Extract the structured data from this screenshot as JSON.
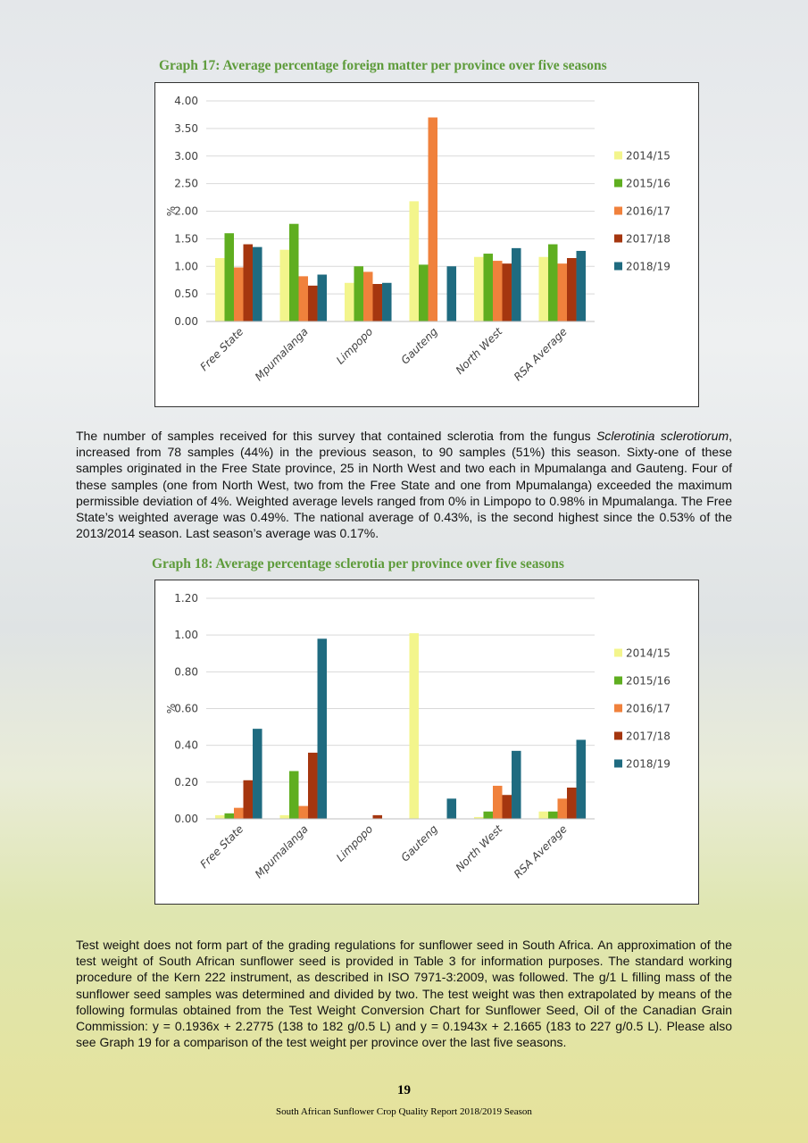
{
  "chart_data": [
    {
      "type": "bar",
      "title": "Graph 17: Average percentage foreign matter per province over five seasons",
      "y_label": "%",
      "categories": [
        "Free State",
        "Mpumalanga",
        "Limpopo",
        "Gauteng",
        "North West",
        "RSA Average"
      ],
      "series": [
        {
          "name": "2014/15",
          "color": "#f3f58c",
          "values": [
            1.15,
            1.3,
            0.7,
            2.18,
            1.17,
            1.17
          ]
        },
        {
          "name": "2015/16",
          "color": "#5fae20",
          "values": [
            1.6,
            1.77,
            1.0,
            1.03,
            1.23,
            1.4
          ]
        },
        {
          "name": "2016/17",
          "color": "#f0813c",
          "values": [
            0.98,
            0.82,
            0.9,
            3.7,
            1.1,
            1.05
          ]
        },
        {
          "name": "2017/18",
          "color": "#a5360f",
          "values": [
            1.4,
            0.65,
            0.68,
            null,
            1.05,
            1.15
          ]
        },
        {
          "name": "2018/19",
          "color": "#1f6b80",
          "values": [
            1.35,
            0.85,
            0.7,
            1.0,
            1.33,
            1.28
          ]
        }
      ],
      "ylim": [
        0,
        4
      ],
      "yticks": [
        {
          "value": 0,
          "label": "0.00"
        },
        {
          "value": 0.5,
          "label": "0.50"
        },
        {
          "value": 1,
          "label": "1.00"
        },
        {
          "value": 1.5,
          "label": "1.50"
        },
        {
          "value": 2,
          "label": "2.00"
        },
        {
          "value": 2.5,
          "label": "2.50"
        },
        {
          "value": 3,
          "label": "3.00"
        },
        {
          "value": 3.5,
          "label": "3.50"
        },
        {
          "value": 4,
          "label": "4.00"
        }
      ],
      "grid": true,
      "legend": "right"
    },
    {
      "type": "bar",
      "title": "Graph 18: Average percentage sclerotia per province over five seasons",
      "y_label": "%",
      "categories": [
        "Free State",
        "Mpumalanga",
        "Limpopo",
        "Gauteng",
        "North West",
        "RSA Average"
      ],
      "series": [
        {
          "name": "2014/15",
          "color": "#f3f58c",
          "values": [
            0.02,
            0.02,
            0,
            1.01,
            0.01,
            0.04
          ]
        },
        {
          "name": "2015/16",
          "color": "#5fae20",
          "values": [
            0.03,
            0.26,
            0,
            0,
            0.04,
            0.04
          ]
        },
        {
          "name": "2016/17",
          "color": "#f0813c",
          "values": [
            0.06,
            0.07,
            0,
            0,
            0.18,
            0.11
          ]
        },
        {
          "name": "2017/18",
          "color": "#a5360f",
          "values": [
            0.21,
            0.36,
            0.02,
            0,
            0.13,
            0.17
          ]
        },
        {
          "name": "2018/19",
          "color": "#1f6b80",
          "values": [
            0.49,
            0.98,
            0,
            0.11,
            0.37,
            0.43
          ]
        }
      ],
      "ylim": [
        0,
        1.2
      ],
      "yticks": [
        {
          "value": 0,
          "label": "0.00"
        },
        {
          "value": 0.2,
          "label": "0.20"
        },
        {
          "value": 0.4,
          "label": "0.40"
        },
        {
          "value": 0.6,
          "label": "0.60"
        },
        {
          "value": 0.8,
          "label": "0.80"
        },
        {
          "value": 1,
          "label": "1.00"
        },
        {
          "value": 1.2,
          "label": "1.20"
        }
      ],
      "grid": true,
      "legend": "right"
    }
  ],
  "paragraphs": [
    [
      "The number of samples received for this survey that contained sclerotia from the fungus ",
      "Sclerotinia sclerotiorum",
      ", increased from 78 samples (44%) in the previous season, to 90 samples (51%) this season.  Sixty-one of these samples originated in the Free State province, 25 in North West and two each in Mpumalanga and Gauteng.  Four of these samples (one from North West, two from the Free State and one from Mpumalanga) exceeded the maximum permissible deviation of 4%.  Weighted average levels ranged from 0% in Limpopo to 0.98% in Mpumalanga.  The Free State’s weighted average was 0.49%.   The national average of 0.43%, is the second highest since the 0.53% of the 2013/2014 season.  Last season’s average was 0.17%."
    ],
    [
      "Test weight does not form part of the grading regulations for sunflower seed in South Africa.  An approximation of the test weight of South African sunflower seed is provided in Table 3 for information purposes.  The standard working procedure of the Kern 222 instrument, as described in ISO 7971-3:2009, was followed.  The g/1 L filling mass of the sunflower seed samples was determined and divided by two.  The test weight was then extrapolated by means of the following formulas obtained from the Test Weight Conversion Chart for Sunflower Seed, Oil of the Canadian Grain Commission:  y = 0.1936x + 2.2775 (138 to 182 g/0.5 L) and y = 0.1943x + 2.1665 (183 to 227 g/0.5 L).  Please also see Graph 19 for a comparison of the test weight per province over the last five seasons."
    ]
  ],
  "page_number": "19",
  "footer": "South African Sunflower Crop Quality Report 2018/2019 Season"
}
